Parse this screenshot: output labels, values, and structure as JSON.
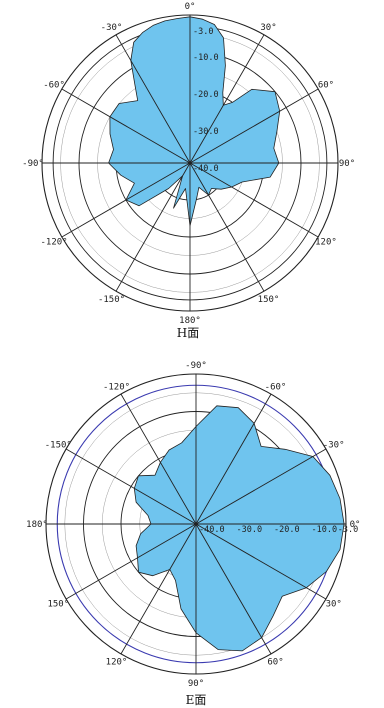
{
  "chart_data": [
    {
      "type": "polar-area",
      "title": "",
      "caption": "H面",
      "angle_unit": "deg",
      "angle_labels": [
        "0°",
        "30°",
        "60°",
        "90°",
        "120°",
        "150°",
        "180°",
        "-150°",
        "-120°",
        "-90°",
        "-60°",
        "-30°"
      ],
      "angle_values": [
        0,
        30,
        60,
        90,
        120,
        150,
        180,
        -150,
        -120,
        -90,
        -60,
        -30
      ],
      "radial_labels": [
        "-3.0",
        "-10.0",
        "-20.0",
        "-30.0",
        "-40.0"
      ],
      "radial_values_db": [
        -3,
        -10,
        -20,
        -30,
        -40
      ],
      "radial_range_db": [
        -40,
        0
      ],
      "fill_color": "#6fc4ee",
      "pattern": {
        "angle": [
          -180,
          -170,
          -160,
          -150,
          -140,
          -130,
          -120,
          -110,
          -100,
          -90,
          -80,
          -70,
          -60,
          -50,
          -40,
          -35,
          -30,
          -25,
          -20,
          -15,
          -10,
          -5,
          0,
          5,
          10,
          15,
          20,
          25,
          30,
          35,
          40,
          50,
          60,
          70,
          80,
          90,
          100,
          110,
          120,
          130,
          140,
          150,
          160,
          170,
          180
        ],
        "gain_db": [
          -23,
          -33,
          -27,
          -36,
          -31,
          -22,
          -20,
          -24,
          -21,
          -18,
          -19,
          -17,
          -15,
          -15,
          -18,
          -14,
          -8,
          -4,
          -2.5,
          -1.5,
          -1,
          -0.8,
          -0.5,
          -1,
          -2,
          -5,
          -12,
          -19,
          -22,
          -20,
          -14,
          -10,
          -12,
          -15,
          -17,
          -16,
          -18,
          -25,
          -27,
          -29,
          -31,
          -30,
          -33,
          -30,
          -23
        ]
      }
    },
    {
      "type": "polar-area",
      "title": "",
      "caption": "E面",
      "angle_unit": "deg",
      "angle_labels": [
        "-90°",
        "-60°",
        "-30°",
        "0°",
        "30°",
        "60°",
        "90°",
        "120°",
        "150°",
        "180°",
        "-150°",
        "-120°"
      ],
      "angle_values": [
        -90,
        -60,
        -30,
        0,
        30,
        60,
        90,
        120,
        150,
        180,
        -150,
        -120
      ],
      "radial_labels": [
        "-3.0",
        "-10.0",
        "-20.0",
        "-30.0",
        "-40.0"
      ],
      "radial_values_db": [
        -3,
        -10,
        -20,
        -30,
        -40
      ],
      "radial_range_db": [
        -40,
        0
      ],
      "fill_color": "#6fc4ee",
      "pattern": {
        "angle": [
          -180,
          -170,
          -160,
          -150,
          -140,
          -130,
          -120,
          -110,
          -100,
          -90,
          -80,
          -70,
          -60,
          -50,
          -40,
          -30,
          -20,
          -10,
          0,
          10,
          20,
          30,
          40,
          50,
          60,
          70,
          80,
          90,
          100,
          110,
          120,
          130,
          140,
          150,
          160,
          170,
          180
        ],
        "gain_db": [
          -28,
          -27,
          -23,
          -21,
          -20,
          -23,
          -21,
          -19,
          -18,
          -14,
          -8,
          -7,
          -9,
          -13,
          -9,
          -4,
          -2,
          -1,
          -0.5,
          -1,
          -3,
          -6,
          -10,
          -8,
          -5,
          -4,
          -6,
          -11,
          -17,
          -24,
          -26,
          -22,
          -20,
          -22,
          -23,
          -25,
          -28
        ]
      }
    }
  ]
}
